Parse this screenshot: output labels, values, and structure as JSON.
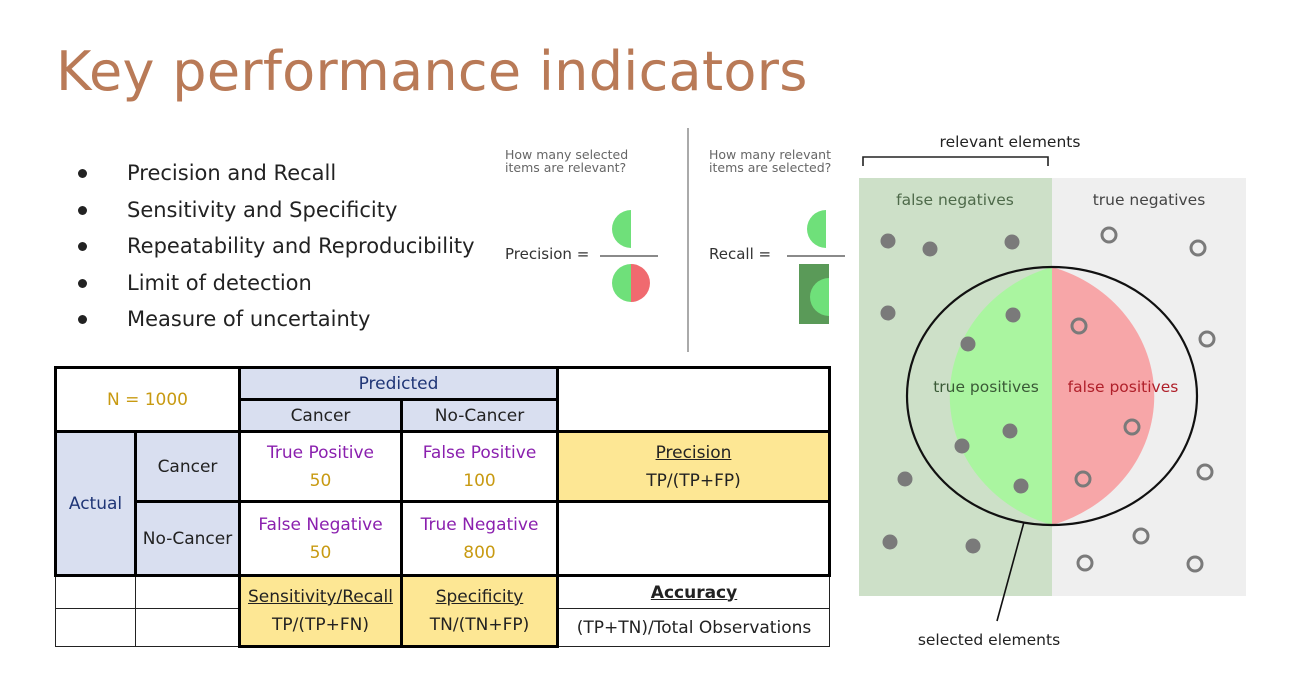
{
  "title": "Key performance indicators",
  "bullets": [
    "Precision and Recall",
    "Sensitivity and Specificity",
    "Repeatability and Reproducibility",
    "Limit of detection",
    "Measure of uncertainty"
  ],
  "precision_panel": {
    "question": [
      "How many selected",
      "items are relevant?"
    ],
    "label": "Precision ="
  },
  "recall_panel": {
    "question": [
      "How many relevant",
      "items are selected?"
    ],
    "label": "Recall ="
  },
  "venn": {
    "relevant_label": "relevant elements",
    "false_negatives": "false negatives",
    "true_negatives": "true negatives",
    "true_positives": "true positives",
    "false_positives": "false positives",
    "selected_label": "selected elements"
  },
  "table": {
    "n": "N = 1000",
    "predicted": "Predicted",
    "actual": "Actual",
    "cancer": "Cancer",
    "no_cancer": "No-Cancer",
    "tp_label": "True Positive",
    "tp_value": "50",
    "fp_label": "False Positive",
    "fp_value": "100",
    "fn_label": "False Negative",
    "fn_value": "50",
    "tn_label": "True Negative",
    "tn_value": "800",
    "precision_title": "Precision",
    "precision_formula": "TP/(TP+FP)",
    "sensitivity_title": "Sensitivity/Recall",
    "sensitivity_formula": "TP/(TP+FN)",
    "specificity_title": "Specificity",
    "specificity_formula": "TN/(TN+FP)",
    "accuracy_title": "Accuracy",
    "accuracy_formula": "(TP+TN)/Total Observations"
  },
  "colors": {
    "title": "#b97a57",
    "green": "#6fe07a",
    "red": "#f06a6f",
    "venn_green_bg": "#cde0c8",
    "venn_grey_bg": "#efefef",
    "circle_green": "#aaf5a0",
    "circle_red": "#f7a6a8"
  }
}
